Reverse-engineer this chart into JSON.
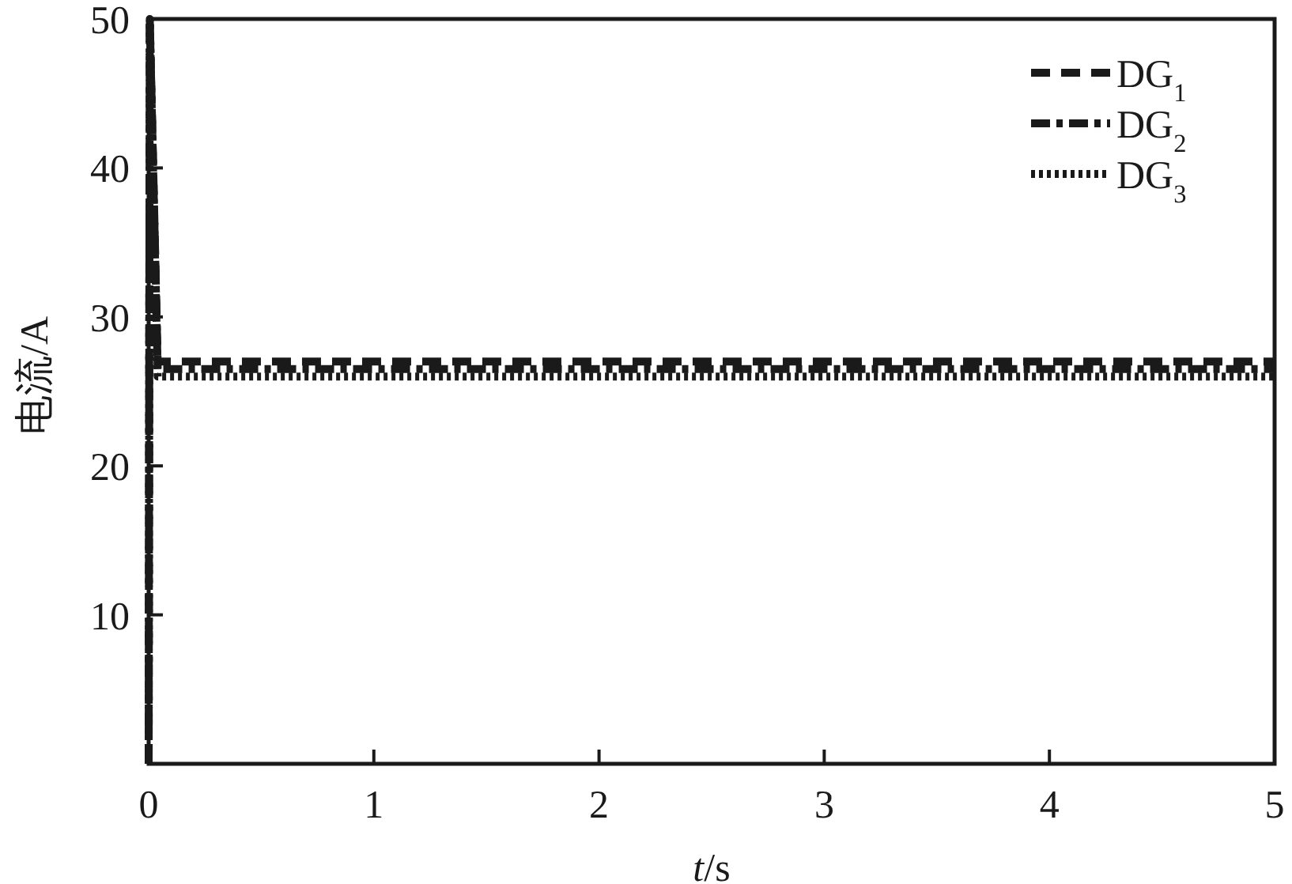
{
  "chart_data": {
    "type": "line",
    "xlabel": "*t*/s",
    "ylabel": "电流/A",
    "x": [
      0,
      0.005,
      0.04,
      5
    ],
    "series": [
      {
        "name": "DG$_{1}$",
        "color": "#1a1a1a",
        "line_style": "dashed",
        "values": [
          0,
          50,
          27,
          27
        ]
      },
      {
        "name": "DG$_{2}$",
        "color": "#1a1a1a",
        "line_style": "dashdot",
        "values": [
          0,
          50,
          26.5,
          26.5
        ]
      },
      {
        "name": "DG$_{3}$",
        "color": "#1a1a1a",
        "line_style": "dotted",
        "values": [
          0,
          50,
          26,
          26
        ]
      }
    ],
    "xlim": [
      0,
      5
    ],
    "ylim": [
      0,
      50
    ],
    "xticks": [
      0,
      1,
      2,
      3,
      4,
      5
    ],
    "yticks": [
      10,
      20,
      30,
      40,
      50
    ],
    "legend": "top right",
    "grid": false,
    "marker": "none"
  }
}
